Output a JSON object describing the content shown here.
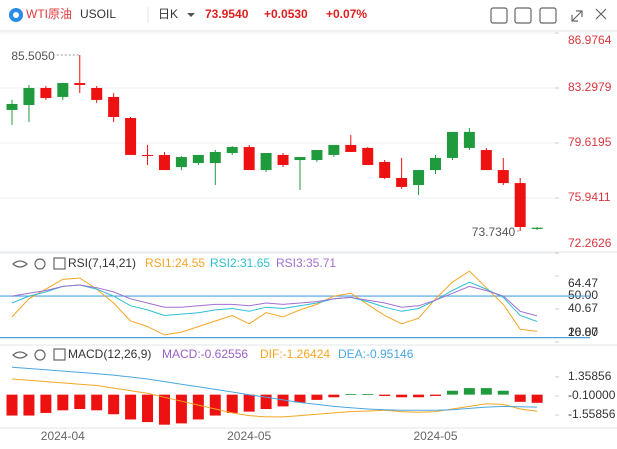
{
  "header": {
    "name": "WTI原油",
    "symbol": "USOIL",
    "period": "日K",
    "price": "73.9540",
    "change": "+0.0530",
    "change_pct": "+0.07%"
  },
  "chart_data": [
    {
      "type": "candlestick",
      "open": [
        81.83,
        82.16,
        83.3,
        82.7,
        83.63,
        83.3,
        82.7,
        81.29,
        78.82,
        78.82,
        78.01,
        78.28,
        78.28,
        78.95,
        79.35,
        77.81,
        78.82,
        78.48,
        78.48,
        78.82,
        79.49,
        79.29,
        78.35,
        77.28,
        76.81,
        77.81,
        78.62,
        79.29,
        79.15,
        77.81,
        76.94,
        73.87
      ],
      "high": [
        82.5,
        83.5,
        83.43,
        83.63,
        85.505,
        83.43,
        82.96,
        81.36,
        79.49,
        79.02,
        78.75,
        78.82,
        79.15,
        79.42,
        79.49,
        78.95,
        78.95,
        78.68,
        79.15,
        79.49,
        80.15,
        79.35,
        78.48,
        78.62,
        77.81,
        78.82,
        80.36,
        80.62,
        79.29,
        78.62,
        77.28,
        74.0
      ],
      "low": [
        80.82,
        81.02,
        82.5,
        82.5,
        82.96,
        82.3,
        81.02,
        78.82,
        78.15,
        77.81,
        77.81,
        78.15,
        76.81,
        78.82,
        77.81,
        77.68,
        78.01,
        76.48,
        78.35,
        78.68,
        79.02,
        78.15,
        77.21,
        76.55,
        76.14,
        77.55,
        78.48,
        79.15,
        77.81,
        76.81,
        73.734,
        73.8
      ],
      "close": [
        82.23,
        83.3,
        82.63,
        83.63,
        83.5,
        82.5,
        81.36,
        78.82,
        78.75,
        77.81,
        78.68,
        78.82,
        79.02,
        79.35,
        77.81,
        78.95,
        78.15,
        78.68,
        79.15,
        79.49,
        79.02,
        78.15,
        77.28,
        76.68,
        77.81,
        78.62,
        80.36,
        80.36,
        77.81,
        76.94,
        74.0,
        73.954
      ],
      "up_color": "#1f9a3c",
      "down_color": "#ee1111",
      "ylim": [
        72.2626,
        86.9764
      ],
      "yticks": [
        86.9764,
        83.2979,
        79.6195,
        75.9411,
        72.2626
      ],
      "grid": true,
      "annotations": [
        {
          "value": 85.505,
          "label": "85.5050"
        },
        {
          "value": 73.734,
          "label": "73.7340"
        }
      ]
    },
    {
      "type": "line",
      "title": "RSI(7,14,21)",
      "series": [
        {
          "name": "RSI1:24.55",
          "color": "#f5a623",
          "values": [
            35,
            48,
            55,
            62,
            63,
            55,
            45,
            32,
            28,
            22,
            24,
            28,
            32,
            36,
            30,
            38,
            35,
            40,
            44,
            50,
            52,
            44,
            36,
            30,
            34,
            48,
            60,
            68,
            56,
            44,
            26,
            24.55
          ]
        },
        {
          "name": "RSI2:31.65",
          "color": "#2fbfd4",
          "values": [
            45,
            50,
            53,
            57,
            58,
            55,
            50,
            43,
            40,
            36,
            37,
            38,
            40,
            41,
            39,
            42,
            41,
            43,
            45,
            48,
            49,
            46,
            42,
            39,
            41,
            47,
            54,
            60,
            55,
            49,
            36,
            31.65
          ]
        },
        {
          "name": "RSI3:35.71",
          "color": "#a070d0",
          "values": [
            50,
            52,
            54,
            57,
            58,
            56,
            53,
            48,
            45,
            42,
            42,
            43,
            44,
            44,
            43,
            45,
            44,
            45,
            46,
            48,
            49,
            47,
            45,
            42,
            43,
            47,
            52,
            57,
            54,
            50,
            39,
            35.71
          ]
        }
      ],
      "ylim": [
        16.87,
        64.47
      ],
      "yticks": [
        64.47,
        {
          "value": 50,
          "label": "50.00"
        },
        40.67,
        {
          "value": 20,
          "label": "20.00"
        },
        16.87
      ],
      "hlines": [
        50,
        20
      ],
      "hline_color": "#4aa3e0"
    },
    {
      "type": "combo",
      "title": "MACD(12,26,9)",
      "categories": [
        null,
        null,
        null,
        "2024-04",
        null,
        null,
        null,
        null,
        null,
        null,
        null,
        null,
        null,
        null,
        "2024-05",
        null,
        null,
        null,
        null,
        null,
        null,
        null,
        null,
        null,
        null,
        "2024-05",
        null,
        null,
        null,
        null,
        null,
        null
      ],
      "series": [
        {
          "name": "MACD:-0.62556",
          "color": "#9c5fc7",
          "kind": "bar",
          "values": [
            -1.6,
            -1.6,
            -1.4,
            -1.2,
            -1.1,
            -1.2,
            -1.5,
            -1.9,
            -2.1,
            -2.3,
            -2.2,
            -1.9,
            -1.6,
            -1.4,
            -1.3,
            -1.1,
            -0.9,
            -0.6,
            -0.4,
            -0.2,
            0.05,
            0.05,
            -0.1,
            -0.2,
            -0.2,
            -0.1,
            0.3,
            0.5,
            0.5,
            0.3,
            -0.55,
            -0.62556
          ]
        },
        {
          "name": "DIF:-1.26424",
          "color": "#f5a623",
          "values": [
            1.2,
            1.1,
            1.0,
            0.9,
            0.8,
            0.7,
            0.5,
            0.3,
            0.1,
            -0.2,
            -0.5,
            -0.8,
            -1.1,
            -1.4,
            -1.6,
            -1.7,
            -1.7,
            -1.6,
            -1.5,
            -1.4,
            -1.3,
            -1.25,
            -1.2,
            -1.3,
            -1.35,
            -1.3,
            -1.1,
            -0.9,
            -0.7,
            -0.75,
            -1.1,
            -1.26424
          ]
        },
        {
          "name": "DEA:-0.95146",
          "color": "#4aa8e0",
          "values": [
            2.1,
            2.0,
            1.9,
            1.8,
            1.7,
            1.6,
            1.5,
            1.35,
            1.2,
            1.0,
            0.8,
            0.6,
            0.4,
            0.2,
            0.0,
            -0.2,
            -0.4,
            -0.6,
            -0.75,
            -0.9,
            -1.0,
            -1.1,
            -1.15,
            -1.2,
            -1.2,
            -1.2,
            -1.15,
            -1.05,
            -0.95,
            -0.9,
            -0.92,
            -0.95146
          ]
        }
      ],
      "up_color": "#1f9a3c",
      "down_color": "#ee1111",
      "ylim": [
        -2.4,
        2.5
      ],
      "yticks": [
        1.35856,
        {
          "value": -0.1,
          "label": "-0.10000"
        },
        -1.55856
      ]
    }
  ]
}
